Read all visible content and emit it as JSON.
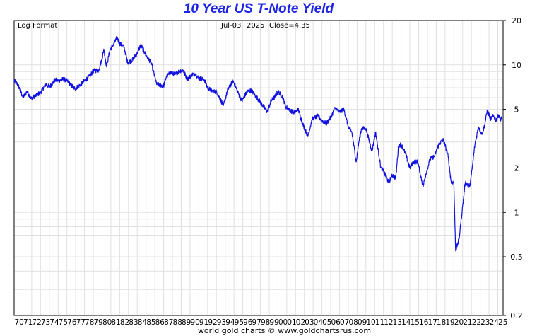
{
  "title": "10 Year US T-Note Yield",
  "footer": "world gold charts © www.goldchartsrus.com",
  "scale_label": "Log Format",
  "last_date": "Jul-03",
  "last_year": "2025",
  "close_text": "Close=4.35",
  "colors": {
    "line": "#1010e0",
    "title": "#1a23e6",
    "grid": "#e0e0e0"
  },
  "chart_data": {
    "type": "line",
    "title": "10 Year US T-Note Yield",
    "yscale": "log",
    "ylim": [
      0.2,
      20
    ],
    "xlim": [
      1970,
      2025.6
    ],
    "y_ticks": [
      0.2,
      0.5,
      1,
      2,
      5,
      10,
      20
    ],
    "y_tick_labels": [
      "0.2",
      "0.5",
      "1",
      "2",
      "5",
      "10",
      "20"
    ],
    "x_tick_labels": [
      "70",
      "71",
      "72",
      "73",
      "74",
      "75",
      "76",
      "77",
      "78",
      "79",
      "80",
      "81",
      "82",
      "83",
      "84",
      "85",
      "86",
      "87",
      "88",
      "89",
      "90",
      "91",
      "92",
      "93",
      "94",
      "95",
      "96",
      "97",
      "98",
      "99",
      "00",
      "01",
      "02",
      "03",
      "04",
      "05",
      "06",
      "07",
      "08",
      "09",
      "10",
      "11",
      "12",
      "13",
      "14",
      "15",
      "16",
      "17",
      "18",
      "19",
      "20",
      "21",
      "22",
      "23",
      "24",
      "25"
    ],
    "grid": true,
    "series": [
      {
        "x": [
          1970.0,
          1970.3,
          1970.6,
          1971.0,
          1971.3,
          1971.5,
          1971.9,
          1972.5,
          1973.0,
          1973.6,
          1974.0,
          1974.7,
          1975.0,
          1975.6,
          1976.0,
          1976.9,
          1977.5,
          1978.0,
          1978.6,
          1979.0,
          1979.6,
          1980.0,
          1980.2,
          1980.5,
          1980.9,
          1981.3,
          1981.7,
          1982.0,
          1982.5,
          1982.9,
          1983.4,
          1984.0,
          1984.4,
          1985.0,
          1985.6,
          1986.2,
          1986.6,
          1987.0,
          1987.3,
          1987.8,
          1988.3,
          1988.8,
          1989.2,
          1989.7,
          1990.2,
          1990.6,
          1991.0,
          1991.6,
          1992.0,
          1992.6,
          1993.0,
          1993.8,
          1994.3,
          1994.9,
          1995.5,
          1995.9,
          1996.5,
          1997.0,
          1997.5,
          1998.0,
          1998.8,
          1999.2,
          1999.6,
          2000.0,
          2000.5,
          2000.9,
          2001.3,
          2001.8,
          2002.3,
          2002.8,
          2003.4,
          2003.9,
          2004.5,
          2005.0,
          2005.5,
          2006.0,
          2006.5,
          2007.0,
          2007.5,
          2008.0,
          2008.4,
          2008.9,
          2009.2,
          2009.5,
          2010.0,
          2010.7,
          2011.1,
          2011.7,
          2012.0,
          2012.6,
          2013.0,
          2013.4,
          2013.7,
          2014.0,
          2014.5,
          2015.0,
          2015.4,
          2015.9,
          2016.5,
          2016.8,
          2017.3,
          2017.8,
          2018.3,
          2018.8,
          2019.3,
          2019.7,
          2020.0,
          2020.2,
          2020.6,
          2021.0,
          2021.3,
          2021.8,
          2022.0,
          2022.4,
          2022.8,
          2023.2,
          2023.5,
          2023.8,
          2024.2,
          2024.5,
          2024.8,
          2025.1,
          2025.3,
          2025.5
        ],
        "y": [
          7.8,
          7.5,
          7.0,
          6.0,
          6.4,
          6.6,
          5.9,
          6.2,
          6.5,
          7.4,
          7.1,
          7.9,
          7.8,
          8.0,
          7.8,
          6.9,
          7.3,
          7.8,
          8.4,
          9.1,
          9.2,
          11.0,
          12.8,
          9.8,
          12.6,
          13.8,
          15.3,
          14.0,
          13.2,
          10.4,
          10.7,
          12.0,
          13.7,
          11.6,
          10.3,
          7.4,
          7.3,
          7.2,
          8.3,
          8.9,
          8.6,
          9.1,
          9.2,
          8.0,
          8.6,
          8.7,
          8.1,
          8.0,
          7.0,
          6.6,
          6.6,
          5.3,
          6.8,
          7.8,
          6.4,
          5.7,
          6.6,
          6.7,
          6.1,
          5.6,
          4.8,
          5.7,
          6.0,
          6.6,
          6.1,
          5.2,
          5.0,
          4.7,
          5.0,
          4.0,
          3.3,
          4.3,
          4.5,
          4.2,
          4.0,
          4.4,
          5.1,
          4.8,
          5.0,
          3.8,
          3.5,
          2.2,
          3.0,
          3.7,
          3.7,
          2.6,
          3.5,
          2.0,
          1.9,
          1.6,
          1.8,
          1.7,
          2.8,
          2.9,
          2.5,
          2.0,
          2.2,
          2.2,
          1.5,
          1.8,
          2.3,
          2.4,
          2.9,
          3.1,
          2.5,
          1.6,
          1.6,
          0.55,
          0.66,
          1.1,
          1.6,
          1.5,
          1.8,
          2.9,
          3.8,
          3.4,
          3.9,
          4.9,
          4.3,
          4.5,
          4.2,
          4.6,
          4.3,
          4.35
        ]
      }
    ]
  }
}
